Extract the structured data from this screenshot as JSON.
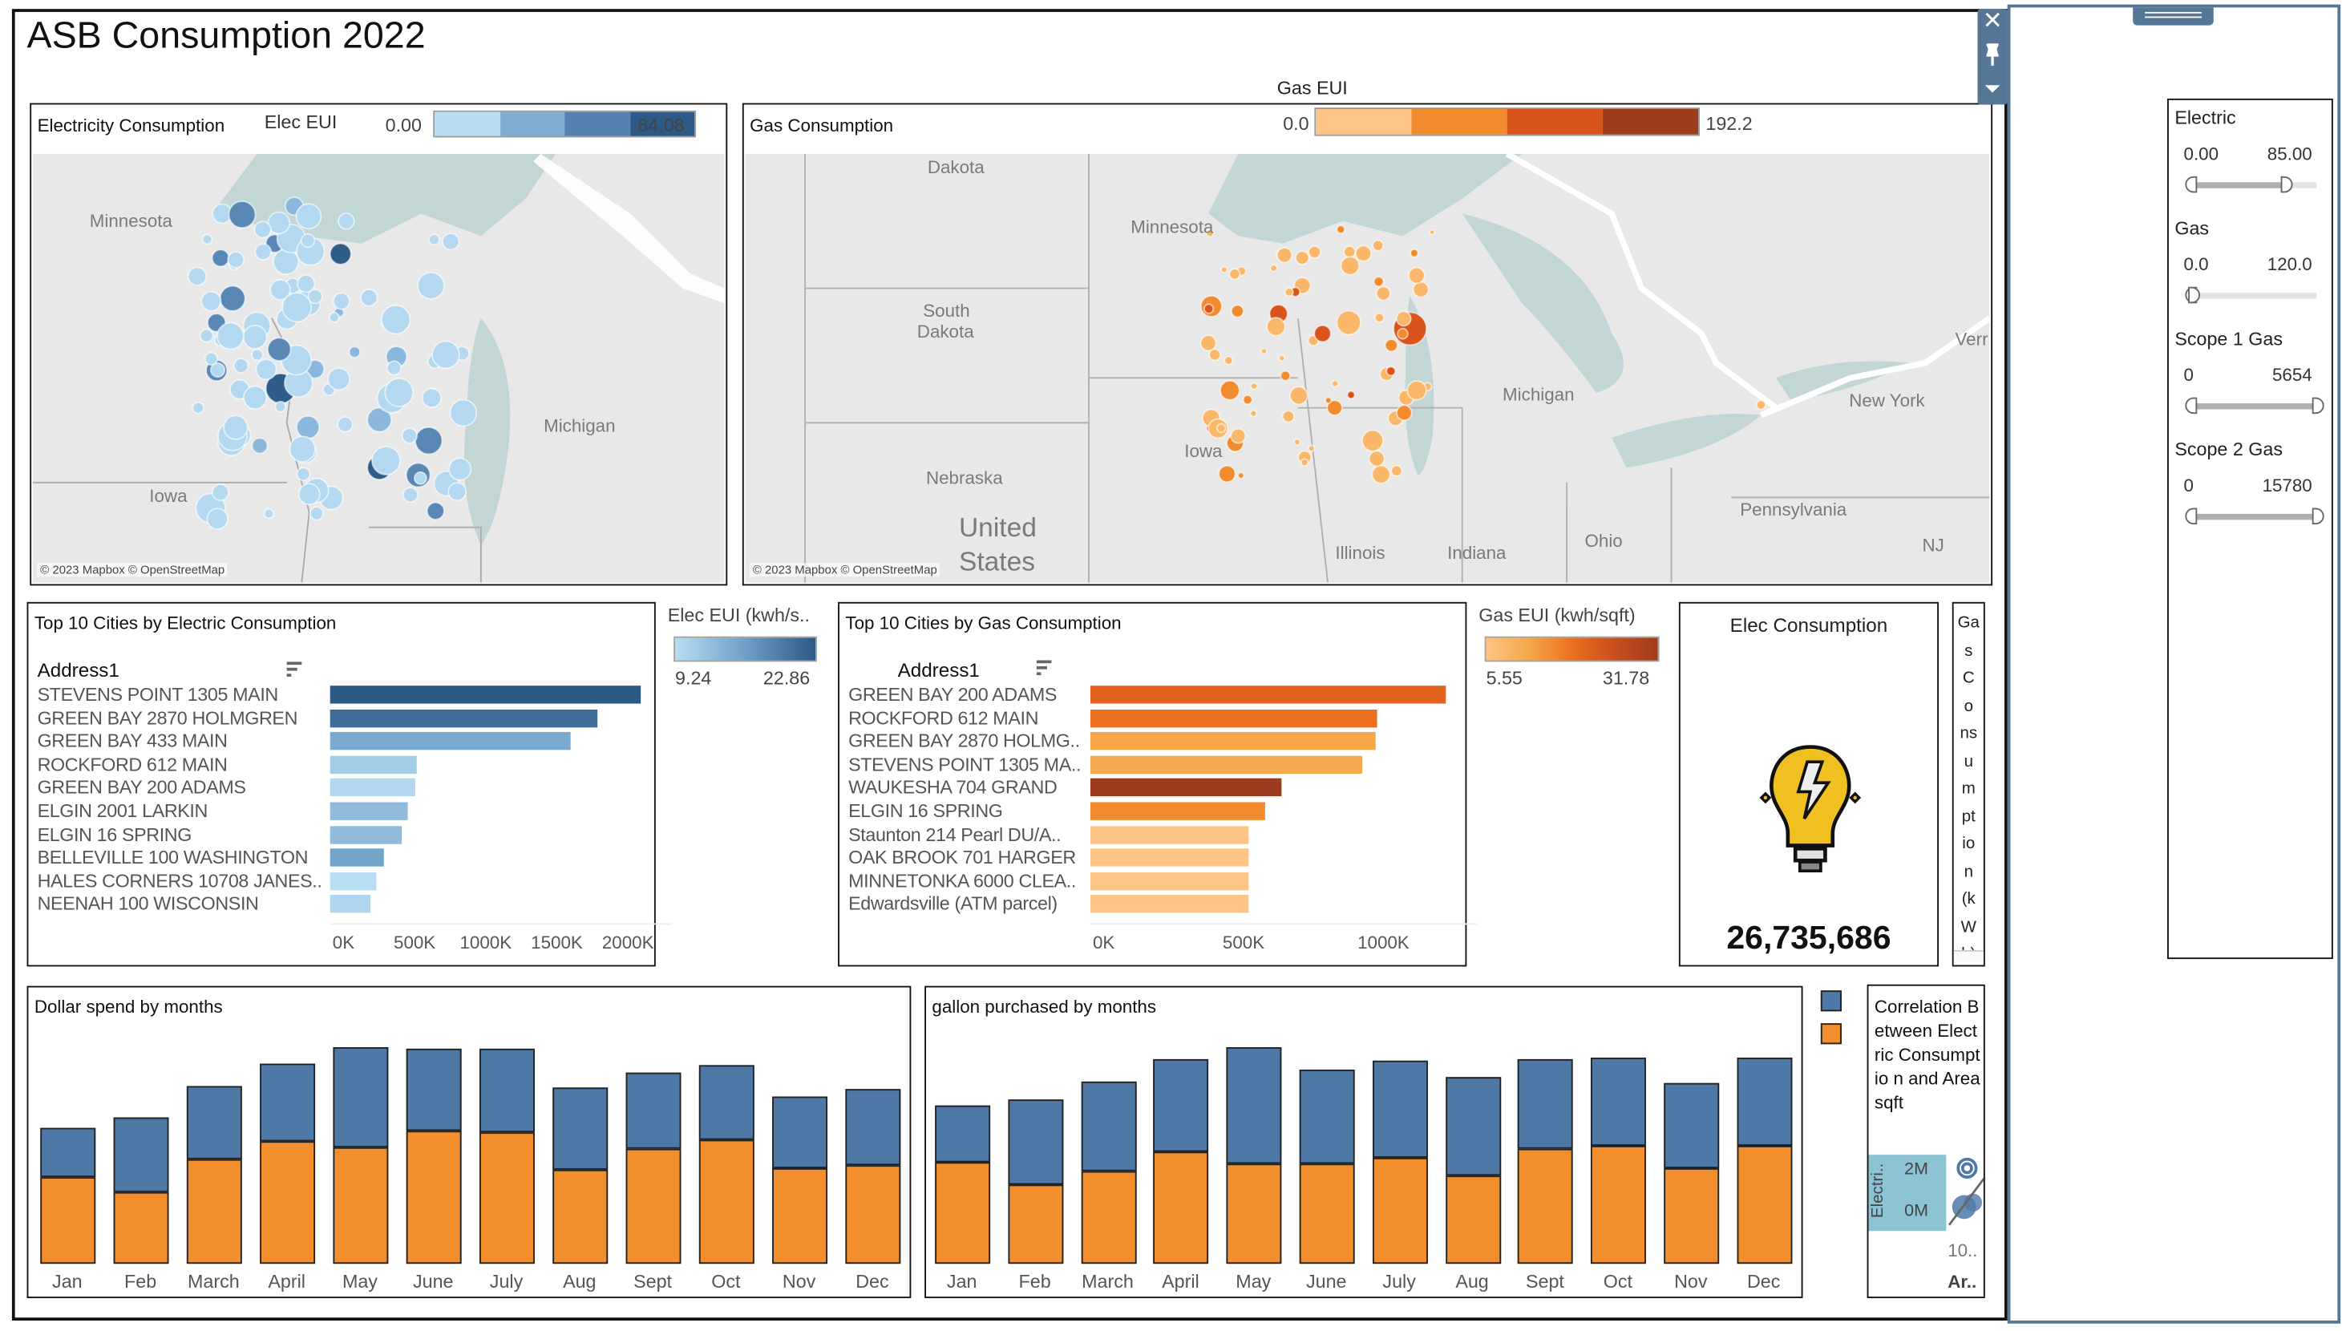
{
  "dashboard": {
    "title": "ASB Consumption 2022"
  },
  "elec_map": {
    "title": "Electricity Consumption",
    "legend_title": "Elec EUI",
    "legend_min": "0.00",
    "legend_max": "84.08",
    "legend_colors": [
      "#b8ddf1",
      "#7fadd4",
      "#5382b0",
      "#2d5a87"
    ],
    "labels": [
      "Minnesota",
      "Iowa",
      "Michigan"
    ],
    "credit": "© 2023 Mapbox © OpenStreetMap"
  },
  "gas_map": {
    "title": "Gas Consumption",
    "legend_title": "Gas EUI",
    "legend_min": "0.0",
    "legend_max": "192.2",
    "legend_colors": [
      "#fdc585",
      "#f28a2e",
      "#d9541b",
      "#9e3b1e"
    ],
    "labels": [
      "Dakota",
      "Minnesota",
      "South",
      "Dakota",
      "Nebraska",
      "Iowa",
      "Michigan",
      "New York",
      "Pennsylvania",
      "Ohio",
      "Indiana",
      "Illinois",
      "United",
      "States",
      "NJ",
      "Verr"
    ],
    "credit": "© 2023 Mapbox © OpenStreetMap"
  },
  "elec_top10": {
    "title": "Top 10 Cities by Electric Consumption",
    "column_header": "Address1",
    "legend_title": "Elec EUI (kwh/s..",
    "legend_min": "9.24",
    "legend_max": "22.86",
    "chart_data": {
      "type": "bar",
      "orientation": "horizontal",
      "categories": [
        "STEVENS POINT 1305 MAIN",
        "GREEN BAY 2870 HOLMGREN",
        "GREEN BAY 433 MAIN",
        "ROCKFORD 612 MAIN",
        "GREEN BAY 200 ADAMS",
        "ELGIN 2001 LARKIN",
        "ELGIN 16 SPRING",
        "BELLEVILLE 100 WASHINGTON",
        "HALES CORNERS 10708 JANES..",
        "NEENAH 100 WISCONSIN"
      ],
      "values": [
        2180000,
        1875000,
        1688000,
        607000,
        596000,
        551000,
        507000,
        382000,
        324000,
        279000
      ],
      "colors": [
        "#2c5985",
        "#3f6d9a",
        "#7aaad0",
        "#a3cce7",
        "#b2d7ee",
        "#8fbadb",
        "#8fbadb",
        "#72a3c9",
        "#b8def2",
        "#b0d6ee"
      ],
      "xticks": [
        "0K",
        "500K",
        "1000K",
        "1500K",
        "2000K"
      ],
      "xlim": [
        0,
        2300000
      ]
    }
  },
  "gas_top10": {
    "title": "Top 10 Cities by Gas Consumption",
    "column_header": "Address1",
    "legend_title": "Gas EUI (kwh/sqft)",
    "legend_min": "5.55",
    "legend_max": "31.78",
    "chart_data": {
      "type": "bar",
      "orientation": "horizontal",
      "categories": [
        "GREEN BAY 200 ADAMS",
        "ROCKFORD 612 MAIN",
        "GREEN BAY 2870 HOLMG..",
        "STEVENS POINT 1305 MA..",
        "WAUKESHA 704 GRAND",
        "ELGIN 16 SPRING",
        "Staunton 214 Pearl DU/A..",
        "OAK BROOK 701 HARGER",
        "MINNETONKA 6000 CLEA..",
        "Edwardsville (ATM parcel)"
      ],
      "values": [
        1272000,
        1026000,
        1021000,
        970000,
        685000,
        623000,
        566000,
        566000,
        566000,
        566000
      ],
      "colors": [
        "#e2631f",
        "#ec7020",
        "#f5a74a",
        "#f5aa4f",
        "#9e3b1e",
        "#f28a2e",
        "#fdc585",
        "#fdc585",
        "#fdc585",
        "#fdc585"
      ],
      "xticks": [
        "0K",
        "500K",
        "1000K"
      ],
      "xlim": [
        0,
        1330000
      ]
    }
  },
  "elec_card": {
    "title": "Elec Consumption",
    "icon": "lightbulb-bolt-icon",
    "value": "26,735,686"
  },
  "gas_card": {
    "title_chars": [
      "Ga",
      "s",
      "C",
      "o",
      "ns",
      "u",
      "m",
      "pt",
      "io",
      "n",
      "(k",
      "W",
      "h)"
    ]
  },
  "dollar_chart": {
    "title": "Dollar spend by months",
    "chart_data": {
      "type": "bar",
      "stacked": true,
      "categories": [
        "Jan",
        "Feb",
        "March",
        "April",
        "May",
        "June",
        "July",
        "Aug",
        "Sept",
        "Oct",
        "Nov",
        "Dec"
      ],
      "series": [
        {
          "color": "#f28e2b",
          "values": [
            58,
            48,
            70,
            82,
            78,
            89,
            88,
            63,
            77,
            83,
            64,
            66
          ]
        },
        {
          "color": "#4e79a7",
          "values": [
            33,
            50,
            49,
            52,
            67,
            55,
            56,
            55,
            51,
            50,
            48,
            51
          ]
        }
      ]
    }
  },
  "gallon_chart": {
    "title": "gallon purchased by months",
    "chart_data": {
      "type": "bar",
      "stacked": true,
      "categories": [
        "Jan",
        "Feb",
        "March",
        "April",
        "May",
        "June",
        "July",
        "Aug",
        "Sept",
        "Oct",
        "Nov",
        "Dec"
      ],
      "series": [
        {
          "color": "#f28e2b",
          "values": [
            68,
            53,
            62,
            75,
            67,
            67,
            71,
            59,
            77,
            79,
            64,
            79
          ]
        },
        {
          "color": "#4e79a7",
          "values": [
            38,
            57,
            60,
            62,
            78,
            63,
            65,
            66,
            60,
            59,
            57,
            59
          ]
        }
      ]
    }
  },
  "legend_swatches": {
    "colors": [
      "#4e79a7",
      "#f28e2b"
    ]
  },
  "correlation": {
    "title": "Correlation Between Electric Consumptio n and Area sqft",
    "y_label": "Electri..",
    "y_ticks": [
      "2M",
      "0M"
    ],
    "x_tick": "10..",
    "x_label": "Ar.."
  },
  "floating_toolbar": {
    "icons": [
      "close-icon",
      "pin-icon",
      "caret-down-icon"
    ]
  },
  "filters": [
    {
      "label": "Electric",
      "min": "0.00",
      "max": "85.00",
      "low": 0.0,
      "high": 0.75
    },
    {
      "label": "Gas",
      "min": "0.0",
      "max": "120.0",
      "low": 0.0,
      "high": 0.02
    },
    {
      "label": "Scope 1 Gas",
      "min": "0",
      "max": "5654",
      "low": 0.0,
      "high": 1.0
    },
    {
      "label": "Scope 2 Gas",
      "min": "0",
      "max": "15780",
      "low": 0.0,
      "high": 1.0
    }
  ]
}
